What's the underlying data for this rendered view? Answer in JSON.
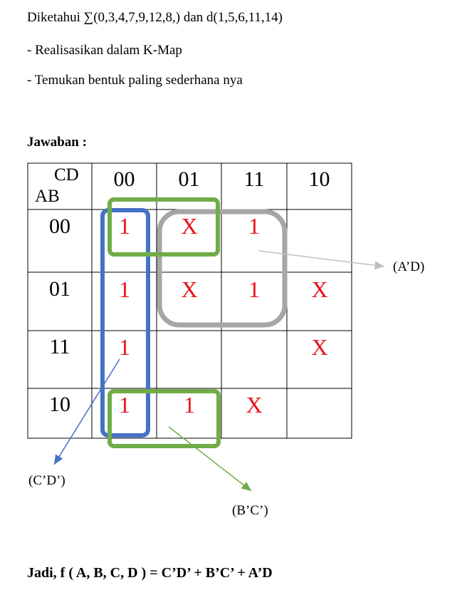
{
  "question": {
    "line1": "Diketahui ∑(0,3,4,7,9,12,8,) dan d(1,5,6,11,14)",
    "line2": "- Realisasikan dalam K-Map",
    "line3": "- Temukan bentuk paling sederhana nya"
  },
  "answer_heading": "Jawaban :",
  "kmap": {
    "corner_top": "CD",
    "corner_bottom": "AB",
    "col_headers": [
      "00",
      "01",
      "11",
      "10"
    ],
    "row_headers": [
      "00",
      "01",
      "11",
      "10"
    ],
    "cells": [
      [
        "1",
        "X",
        "1",
        ""
      ],
      [
        "1",
        "X",
        "1",
        "X"
      ],
      [
        "1",
        "",
        "",
        "X"
      ],
      [
        "1",
        "1",
        "X",
        ""
      ]
    ],
    "value_color": "#e8111a",
    "groups": [
      {
        "name": "C'D'",
        "label": "(C’D’)",
        "color": "#4472c4"
      },
      {
        "name": "B'C'",
        "label": "(B’C’)",
        "color": "#70ad47"
      },
      {
        "name": "A'D",
        "label": "(A’D)",
        "color": "#a6a6a6"
      }
    ]
  },
  "result": "Jadi, f ( A, B, C, D ) =  C’D’ + B’C’ + A’D"
}
